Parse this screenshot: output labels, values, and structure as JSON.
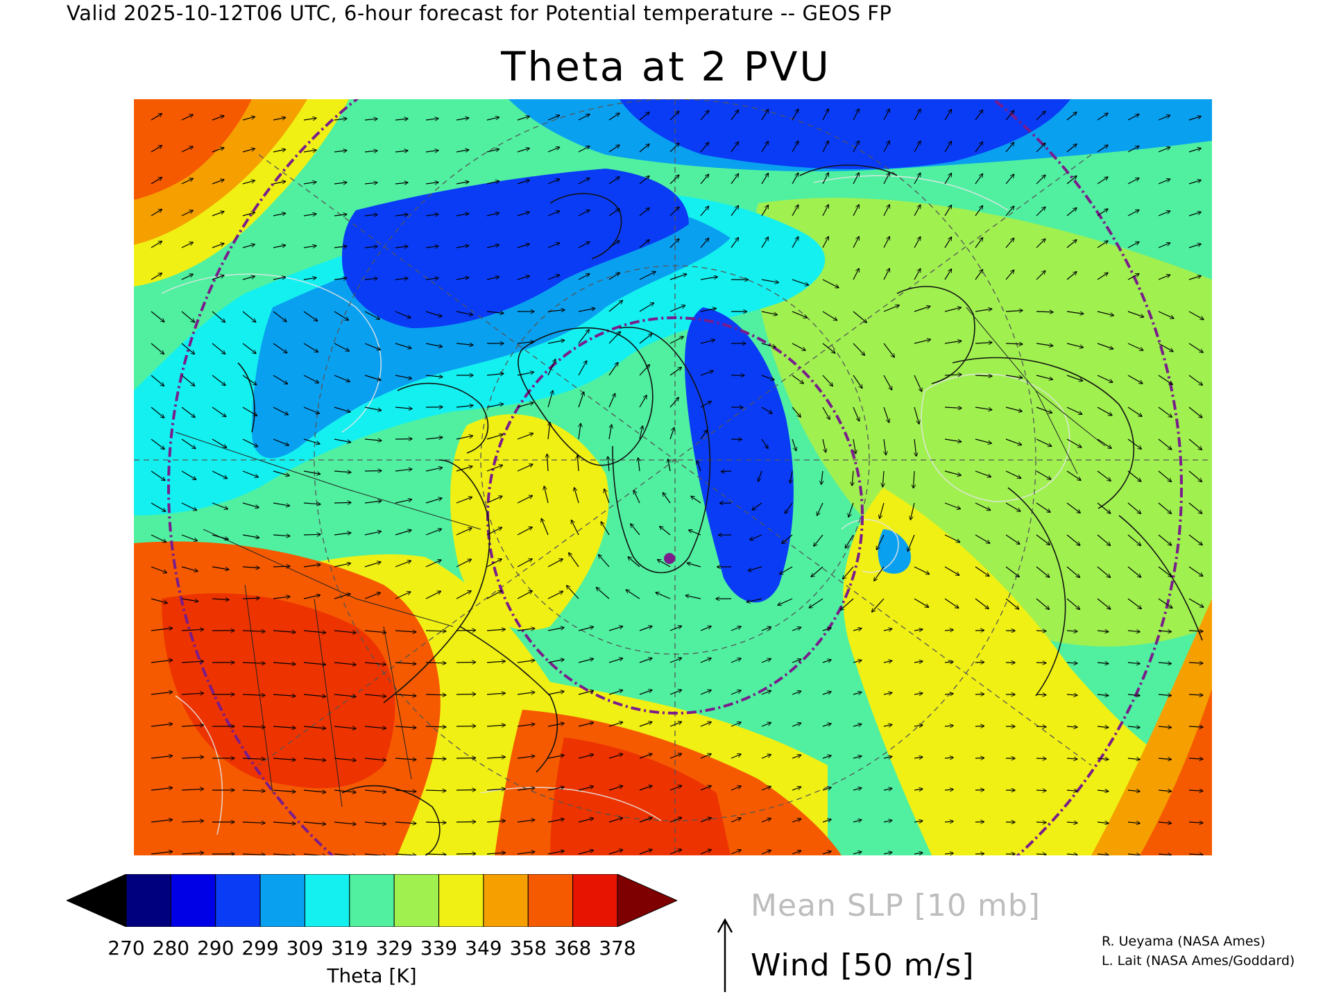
{
  "header": "Valid 2025-10-12T06 UTC, 6-hour forecast for Potential temperature -- GEOS FP",
  "title": "Theta at 2 PVU",
  "colorbar": {
    "title": "Theta [K]",
    "ticks": [
      "270",
      "280",
      "290",
      "299",
      "309",
      "319",
      "329",
      "339",
      "349",
      "358",
      "368",
      "378"
    ],
    "colors": [
      "#000000",
      "#00007f",
      "#0000e6",
      "#0a3cf5",
      "#0aa0f0",
      "#14f0f0",
      "#50f0a0",
      "#a0f050",
      "#f0f014",
      "#f5a000",
      "#f55a00",
      "#e61400",
      "#7f0000"
    ]
  },
  "legend": {
    "slp": "Mean SLP [10 mb]",
    "wind": "Wind [50 m/s]"
  },
  "credits": [
    "R. Ueyama (NASA Ames)",
    "L. Lait (NASA Ames/Goddard)"
  ],
  "map": {
    "projection": "polar stereographic, North Atlantic sector",
    "overlays": [
      "theta shading",
      "sea level pressure contours",
      "wind vectors",
      "coastlines",
      "political boundaries",
      "flight-range circles"
    ]
  }
}
